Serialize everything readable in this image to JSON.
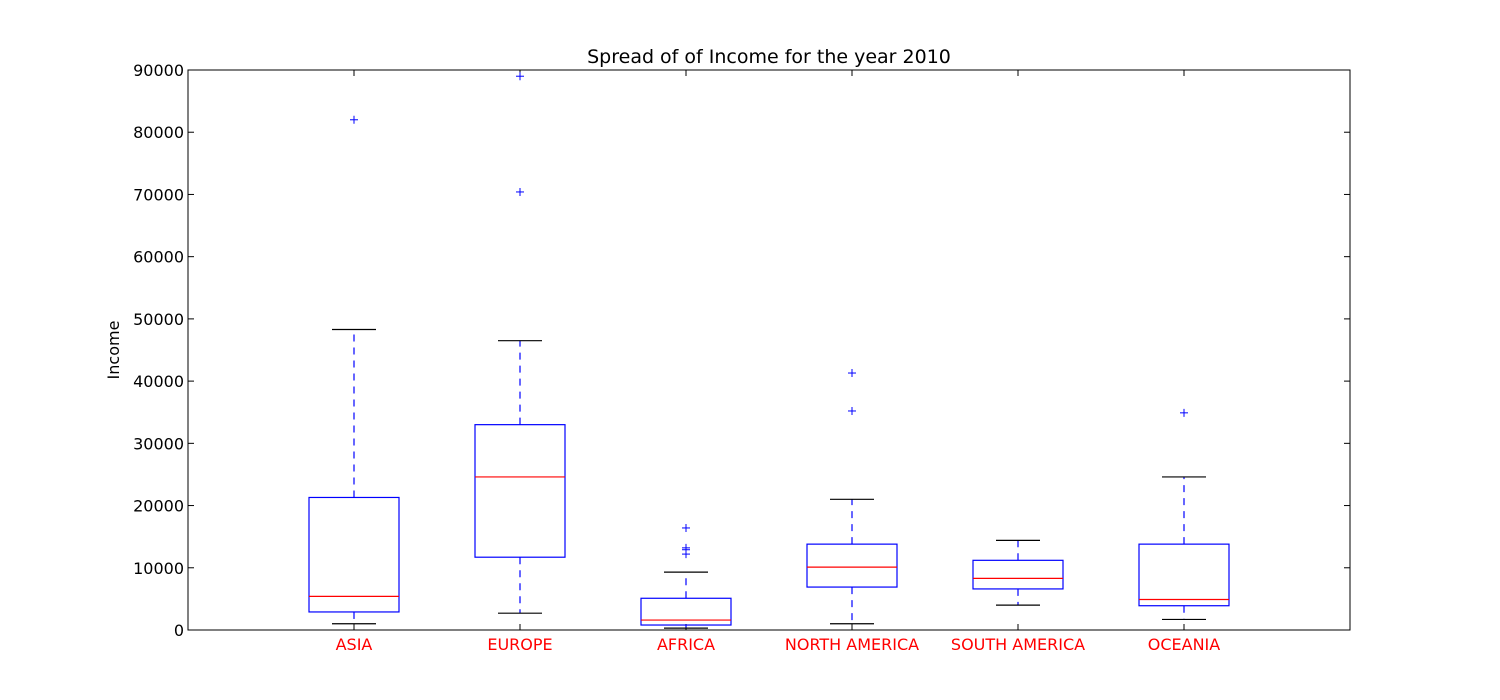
{
  "chart_data": {
    "type": "box",
    "title": "Spread of  of Income for the year 2010",
    "xlabel": "",
    "ylabel": "Income",
    "ylim": [
      0,
      90000
    ],
    "yticks": [
      "0",
      "10000",
      "20000",
      "30000",
      "40000",
      "50000",
      "60000",
      "70000",
      "80000",
      "90000"
    ],
    "grid": false,
    "legend": "none",
    "colors": {
      "box": "#0000ff",
      "median": "#ff0000",
      "whisker": "#0000ff",
      "cap": "#000000",
      "flier": "#0000ff",
      "category_label": "#ff0000",
      "axes": "#000000"
    },
    "categories": [
      "ASIA",
      "EUROPE",
      "AFRICA",
      "NORTH AMERICA",
      "SOUTH AMERICA",
      "OCEANIA"
    ],
    "boxes": [
      {
        "category": "ASIA",
        "whisker_low": 1000,
        "q1": 2900,
        "median": 5400,
        "q3": 21300,
        "whisker_high": 48300,
        "fliers": [
          82000
        ]
      },
      {
        "category": "EUROPE",
        "whisker_low": 2700,
        "q1": 11700,
        "median": 24600,
        "q3": 33000,
        "whisker_high": 46500,
        "fliers": [
          70400,
          89000
        ]
      },
      {
        "category": "AFRICA",
        "whisker_low": 300,
        "q1": 800,
        "median": 1600,
        "q3": 5100,
        "whisker_high": 9300,
        "fliers": [
          12200,
          12900,
          13200,
          16400
        ]
      },
      {
        "category": "NORTH AMERICA",
        "whisker_low": 1000,
        "q1": 6900,
        "median": 10100,
        "q3": 13800,
        "whisker_high": 21000,
        "fliers": [
          35200,
          41300
        ]
      },
      {
        "category": "SOUTH AMERICA",
        "whisker_low": 4000,
        "q1": 6600,
        "median": 8300,
        "q3": 11200,
        "whisker_high": 14400,
        "fliers": []
      },
      {
        "category": "OCEANIA",
        "whisker_low": 1700,
        "q1": 3900,
        "median": 4900,
        "q3": 13800,
        "whisker_high": 24600,
        "fliers": [
          34900
        ]
      }
    ]
  }
}
